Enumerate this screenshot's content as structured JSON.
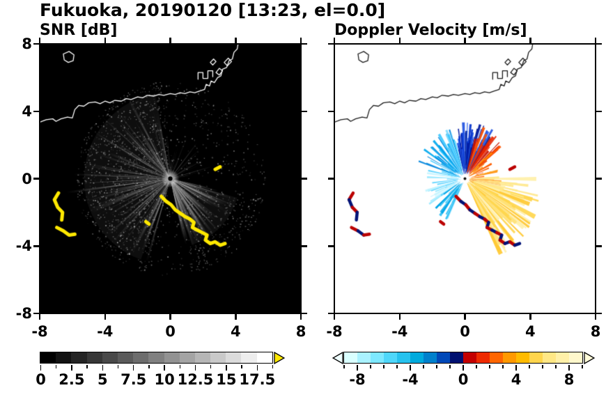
{
  "figure": {
    "title": "Fukuoka, 20190120 [13:23, el=0.0]"
  },
  "chart_data": [
    {
      "type": "heatmap",
      "title": "SNR [dB]",
      "xlim": [
        -8,
        8
      ],
      "ylim": [
        -8,
        8
      ],
      "xticks": [
        -8,
        -4,
        0,
        4,
        8
      ],
      "yticks": [
        -8,
        -4,
        0,
        4,
        8
      ],
      "background": "#000000",
      "radar_center": [
        0,
        0
      ],
      "colorbar": {
        "min": 0,
        "max": 18.75,
        "tick_step": 1.25,
        "labels": [
          0,
          2.5,
          5,
          7.5,
          10,
          12.5,
          15,
          17.5
        ],
        "colors": [
          "#000000",
          "#121212",
          "#242424",
          "#373737",
          "#494949",
          "#5b5b5b",
          "#6d6d6d",
          "#808080",
          "#929292",
          "#a4a4a4",
          "#b6b6b6",
          "#c9c9c9",
          "#dbdbdb",
          "#ededed",
          "#ffffff"
        ],
        "over_arrow": "#ffe800"
      },
      "texture": {
        "seed": 7,
        "noise_dots": 3200,
        "haze": [
          {
            "a0": 100,
            "a1": 250,
            "r": 5.2
          },
          {
            "a0": 288,
            "a1": 344,
            "r": 4.2
          }
        ],
        "fans": [
          {
            "a0": 95,
            "a1": 255,
            "n": 110,
            "rmin": 1.0,
            "rmax": 5.6,
            "g0": 70,
            "g1": 185,
            "w0": 0.5,
            "w1": 2.2
          },
          {
            "a0": 283,
            "a1": 348,
            "n": 85,
            "rmin": 1.2,
            "rmax": 4.4,
            "g0": 90,
            "g1": 215,
            "w0": 0.6,
            "w1": 2.6
          },
          {
            "a0": 5,
            "a1": 95,
            "n": 32,
            "rmin": 0.6,
            "rmax": 2.8,
            "g0": 55,
            "g1": 130,
            "w0": 0.5,
            "w1": 1.8
          },
          {
            "a0": 170,
            "a1": 188,
            "n": 9,
            "rmin": 3.5,
            "rmax": 7.0,
            "g0": 120,
            "g1": 220,
            "w0": 0.4,
            "w1": 1.2
          },
          {
            "a0": 128,
            "a1": 140,
            "n": 5,
            "rmin": 3.0,
            "rmax": 5.8,
            "g0": 110,
            "g1": 200,
            "w0": 0.4,
            "w1": 1.0
          }
        ]
      },
      "clutter": {
        "colors": [
          "#ffe800"
        ],
        "line_width": 5
      }
    },
    {
      "type": "heatmap",
      "title": "Doppler Velocity [m/s]",
      "xlim": [
        -8,
        8
      ],
      "ylim": [
        -8,
        8
      ],
      "xticks": [
        -8,
        -4,
        0,
        4,
        8
      ],
      "yticks": [
        -8,
        -4,
        0,
        4,
        8
      ],
      "background": "#ffffff",
      "radar_center": [
        0,
        0
      ],
      "colorbar": {
        "min": -9,
        "max": 9,
        "tick_step": 1,
        "labels": [
          -8,
          -4,
          0,
          4,
          8
        ],
        "colors": [
          "#d9ffff",
          "#aaf2ff",
          "#7de8ff",
          "#4fd7fa",
          "#27c2ee",
          "#00aadd",
          "#0080cc",
          "#0048b8",
          "#001070",
          "#c40000",
          "#ee2a00",
          "#ff6600",
          "#ff9900",
          "#ffbb00",
          "#ffd54d",
          "#ffe785",
          "#fff0a8",
          "#fff8cc"
        ],
        "under_arrow": "#efffff",
        "over_arrow": "#fffbd9"
      },
      "texture": {
        "seed": 11,
        "fans": [
          {
            "a0": 58,
            "a1": 105,
            "n": 70,
            "rmin": 1.1,
            "rmax": 3.4,
            "colors": [
              "#0030cc",
              "#0018a0",
              "#1e50e0",
              "#001c8e",
              "#2a62ee"
            ]
          },
          {
            "a0": 40,
            "a1": 76,
            "n": 26,
            "rmin": 2.1,
            "rmax": 3.3,
            "colors": [
              "#e62500",
              "#ff5500",
              "#c41200"
            ]
          },
          {
            "a0": 105,
            "a1": 160,
            "n": 60,
            "rmin": 0.7,
            "rmax": 3.2,
            "colors": [
              "#00a8ee",
              "#3cc8ff",
              "#0086dd",
              "#7fdcff"
            ]
          },
          {
            "a0": 160,
            "a1": 215,
            "n": 34,
            "rmin": 0.6,
            "rmax": 2.7,
            "colors": [
              "#96e8ff",
              "#c4f4ff",
              "#58d2ff"
            ]
          },
          {
            "a0": 215,
            "a1": 248,
            "n": 22,
            "rmin": 1.1,
            "rmax": 2.7,
            "colors": [
              "#2cc0f4",
              "#7adbff",
              "#00a4e6"
            ]
          },
          {
            "a0": -25,
            "a1": 45,
            "n": 60,
            "rmin": 0.35,
            "rmax": 2.3,
            "colors": [
              "#ff8800",
              "#ff6200",
              "#ffa322",
              "#ee4400"
            ]
          },
          {
            "a0": -65,
            "a1": -16,
            "n": 80,
            "rmin": 0.9,
            "rmax": 5.2,
            "colors": [
              "#ffe27a",
              "#ffd64d",
              "#fff0ac",
              "#ffc933"
            ]
          },
          {
            "a0": -20,
            "a1": 6,
            "n": 14,
            "rmin": 2.0,
            "rmax": 4.6,
            "colors": [
              "#fff0a8",
              "#ffe88c"
            ]
          }
        ]
      },
      "clutter": {
        "colors": [
          "#bb0000",
          "#001377"
        ],
        "line_width": 4.5
      }
    }
  ],
  "clutter_chains": [
    [
      [
        -6.85,
        -0.85
      ],
      [
        -7.1,
        -1.25
      ],
      [
        -6.9,
        -1.7
      ],
      [
        -6.6,
        -2.0
      ],
      [
        -6.65,
        -2.45
      ]
    ],
    [
      [
        -6.95,
        -2.9
      ],
      [
        -6.55,
        -3.1
      ],
      [
        -6.2,
        -3.35
      ],
      [
        -5.85,
        -3.3
      ]
    ],
    [
      [
        -0.55,
        -1.05
      ],
      [
        -0.25,
        -1.35
      ],
      [
        0.05,
        -1.55
      ],
      [
        0.3,
        -1.85
      ],
      [
        0.6,
        -2.05
      ],
      [
        0.9,
        -2.25
      ],
      [
        1.2,
        -2.4
      ],
      [
        1.45,
        -2.6
      ],
      [
        1.35,
        -2.9
      ],
      [
        1.65,
        -3.05
      ],
      [
        1.95,
        -3.2
      ],
      [
        2.25,
        -3.35
      ],
      [
        2.15,
        -3.65
      ],
      [
        2.45,
        -3.85
      ],
      [
        2.75,
        -3.75
      ],
      [
        3.05,
        -3.95
      ],
      [
        3.35,
        -3.85
      ]
    ],
    [
      [
        -1.5,
        -2.55
      ],
      [
        -1.3,
        -2.7
      ]
    ],
    [
      [
        2.75,
        0.55
      ],
      [
        3.05,
        0.7
      ]
    ]
  ],
  "coastline": {
    "stroke_on_dark": "#ffffff",
    "stroke_on_light": "#1a1a1a",
    "paths": [
      [
        [
          -8,
          3.35
        ],
        [
          -7.6,
          3.5
        ],
        [
          -7.2,
          3.55
        ],
        [
          -7.0,
          3.4
        ],
        [
          -6.7,
          3.55
        ],
        [
          -6.3,
          3.65
        ],
        [
          -6.0,
          3.6
        ],
        [
          -5.85,
          4.1
        ],
        [
          -5.6,
          4.35
        ],
        [
          -5.3,
          4.3
        ],
        [
          -5.0,
          4.5
        ],
        [
          -4.6,
          4.55
        ],
        [
          -4.3,
          4.45
        ],
        [
          -4.0,
          4.6
        ],
        [
          -3.7,
          4.5
        ],
        [
          -3.4,
          4.65
        ],
        [
          -3.0,
          4.6
        ],
        [
          -2.7,
          4.75
        ],
        [
          -2.4,
          4.7
        ],
        [
          -2.0,
          4.85
        ],
        [
          -1.7,
          4.8
        ],
        [
          -1.4,
          4.95
        ],
        [
          -1.0,
          4.9
        ],
        [
          -0.7,
          5.0
        ],
        [
          -0.4,
          4.95
        ],
        [
          0.0,
          5.05
        ],
        [
          0.3,
          5.0
        ],
        [
          0.6,
          5.1
        ],
        [
          0.9,
          5.05
        ],
        [
          1.2,
          5.15
        ],
        [
          1.5,
          5.1
        ],
        [
          1.8,
          5.2
        ],
        [
          2.1,
          5.3
        ],
        [
          2.2,
          5.6
        ],
        [
          2.4,
          5.5
        ],
        [
          2.5,
          5.8
        ],
        [
          2.7,
          5.7
        ],
        [
          2.9,
          6.0
        ],
        [
          3.1,
          6.1
        ],
        [
          3.2,
          6.5
        ],
        [
          3.45,
          6.6
        ],
        [
          3.6,
          7.0
        ],
        [
          3.8,
          7.1
        ],
        [
          3.9,
          7.5
        ],
        [
          4.1,
          7.7
        ],
        [
          4.15,
          8.0
        ]
      ],
      [
        [
          -6.55,
          7.4
        ],
        [
          -6.2,
          7.55
        ],
        [
          -5.9,
          7.35
        ],
        [
          -5.95,
          7.0
        ],
        [
          -6.25,
          6.9
        ],
        [
          -6.5,
          7.05
        ],
        [
          -6.55,
          7.4
        ]
      ],
      [
        [
          1.7,
          5.9
        ],
        [
          1.7,
          6.3
        ],
        [
          2.0,
          6.3
        ],
        [
          2.0,
          5.95
        ],
        [
          2.3,
          5.95
        ],
        [
          2.3,
          6.4
        ],
        [
          2.6,
          6.4
        ],
        [
          2.6,
          6.05
        ]
      ],
      [
        [
          2.8,
          6.3
        ],
        [
          3.0,
          6.55
        ],
        [
          3.2,
          6.4
        ],
        [
          3.0,
          6.15
        ],
        [
          2.8,
          6.3
        ]
      ],
      [
        [
          3.3,
          6.9
        ],
        [
          3.55,
          7.15
        ],
        [
          3.75,
          6.95
        ],
        [
          3.5,
          6.7
        ],
        [
          3.3,
          6.9
        ]
      ],
      [
        [
          2.45,
          6.9
        ],
        [
          2.65,
          7.1
        ],
        [
          2.8,
          6.95
        ],
        [
          2.6,
          6.75
        ],
        [
          2.45,
          6.9
        ]
      ]
    ]
  }
}
